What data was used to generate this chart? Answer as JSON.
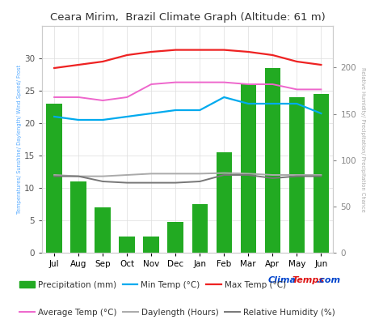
{
  "title": "Ceara Mirim,  Brazil Climate Graph (Altitude: 61 m)",
  "months": [
    "Jul",
    "Aug",
    "Sep",
    "Oct",
    "Nov",
    "Dec",
    "Jan",
    "Feb",
    "Mar",
    "Apr",
    "May",
    "Jun"
  ],
  "precipitation": [
    23,
    11,
    7,
    2.5,
    2.5,
    4.8,
    7.5,
    15.5,
    26,
    28.5,
    24,
    24.5
  ],
  "min_temp": [
    21,
    20.5,
    20.5,
    21,
    21.5,
    22,
    22,
    24,
    23,
    23,
    23,
    21.5
  ],
  "max_temp": [
    28.5,
    29,
    29.5,
    30.5,
    31,
    31.3,
    31.3,
    31.3,
    31,
    30.5,
    29.5,
    29
  ],
  "avg_temp": [
    24,
    24,
    23.5,
    24,
    26,
    26.3,
    26.3,
    26.3,
    26,
    26,
    25.2,
    25.2
  ],
  "daylength": [
    12,
    11.8,
    11.8,
    12,
    12.2,
    12.2,
    12.2,
    12.3,
    12.2,
    12.0,
    12.0,
    12.0
  ],
  "rel_humidity": [
    11.8,
    11.8,
    11,
    10.8,
    10.8,
    10.8,
    11,
    12,
    12,
    11.5,
    11.8,
    11.8
  ],
  "precip_color": "#22aa22",
  "min_temp_color": "#00aaee",
  "max_temp_color": "#ee2222",
  "avg_temp_color": "#ee66cc",
  "daylength_color": "#aaaaaa",
  "rel_humidity_color": "#777777",
  "background_color": "#ffffff",
  "grid_color": "#dddddd",
  "left_axis_color": "#55aaff",
  "right_axis_color": "#aaaaaa",
  "left_ylim": [
    0,
    35
  ],
  "right_ylim": [
    0,
    245
  ],
  "left_yticks": [
    0,
    5,
    10,
    15,
    20,
    25,
    30
  ],
  "right_yticks": [
    0,
    50,
    100,
    150,
    200
  ],
  "ylabel_left": "Temperatures/ Sunshine/ Daylength/ Wind Speed/ Frost",
  "ylabel_right": "Relative Humidity/ Precipitation/ Precipitation Chance",
  "title_fontsize": 9.5,
  "axis_fontsize": 7.5,
  "legend_fontsize": 7.5,
  "bar_width": 0.65
}
